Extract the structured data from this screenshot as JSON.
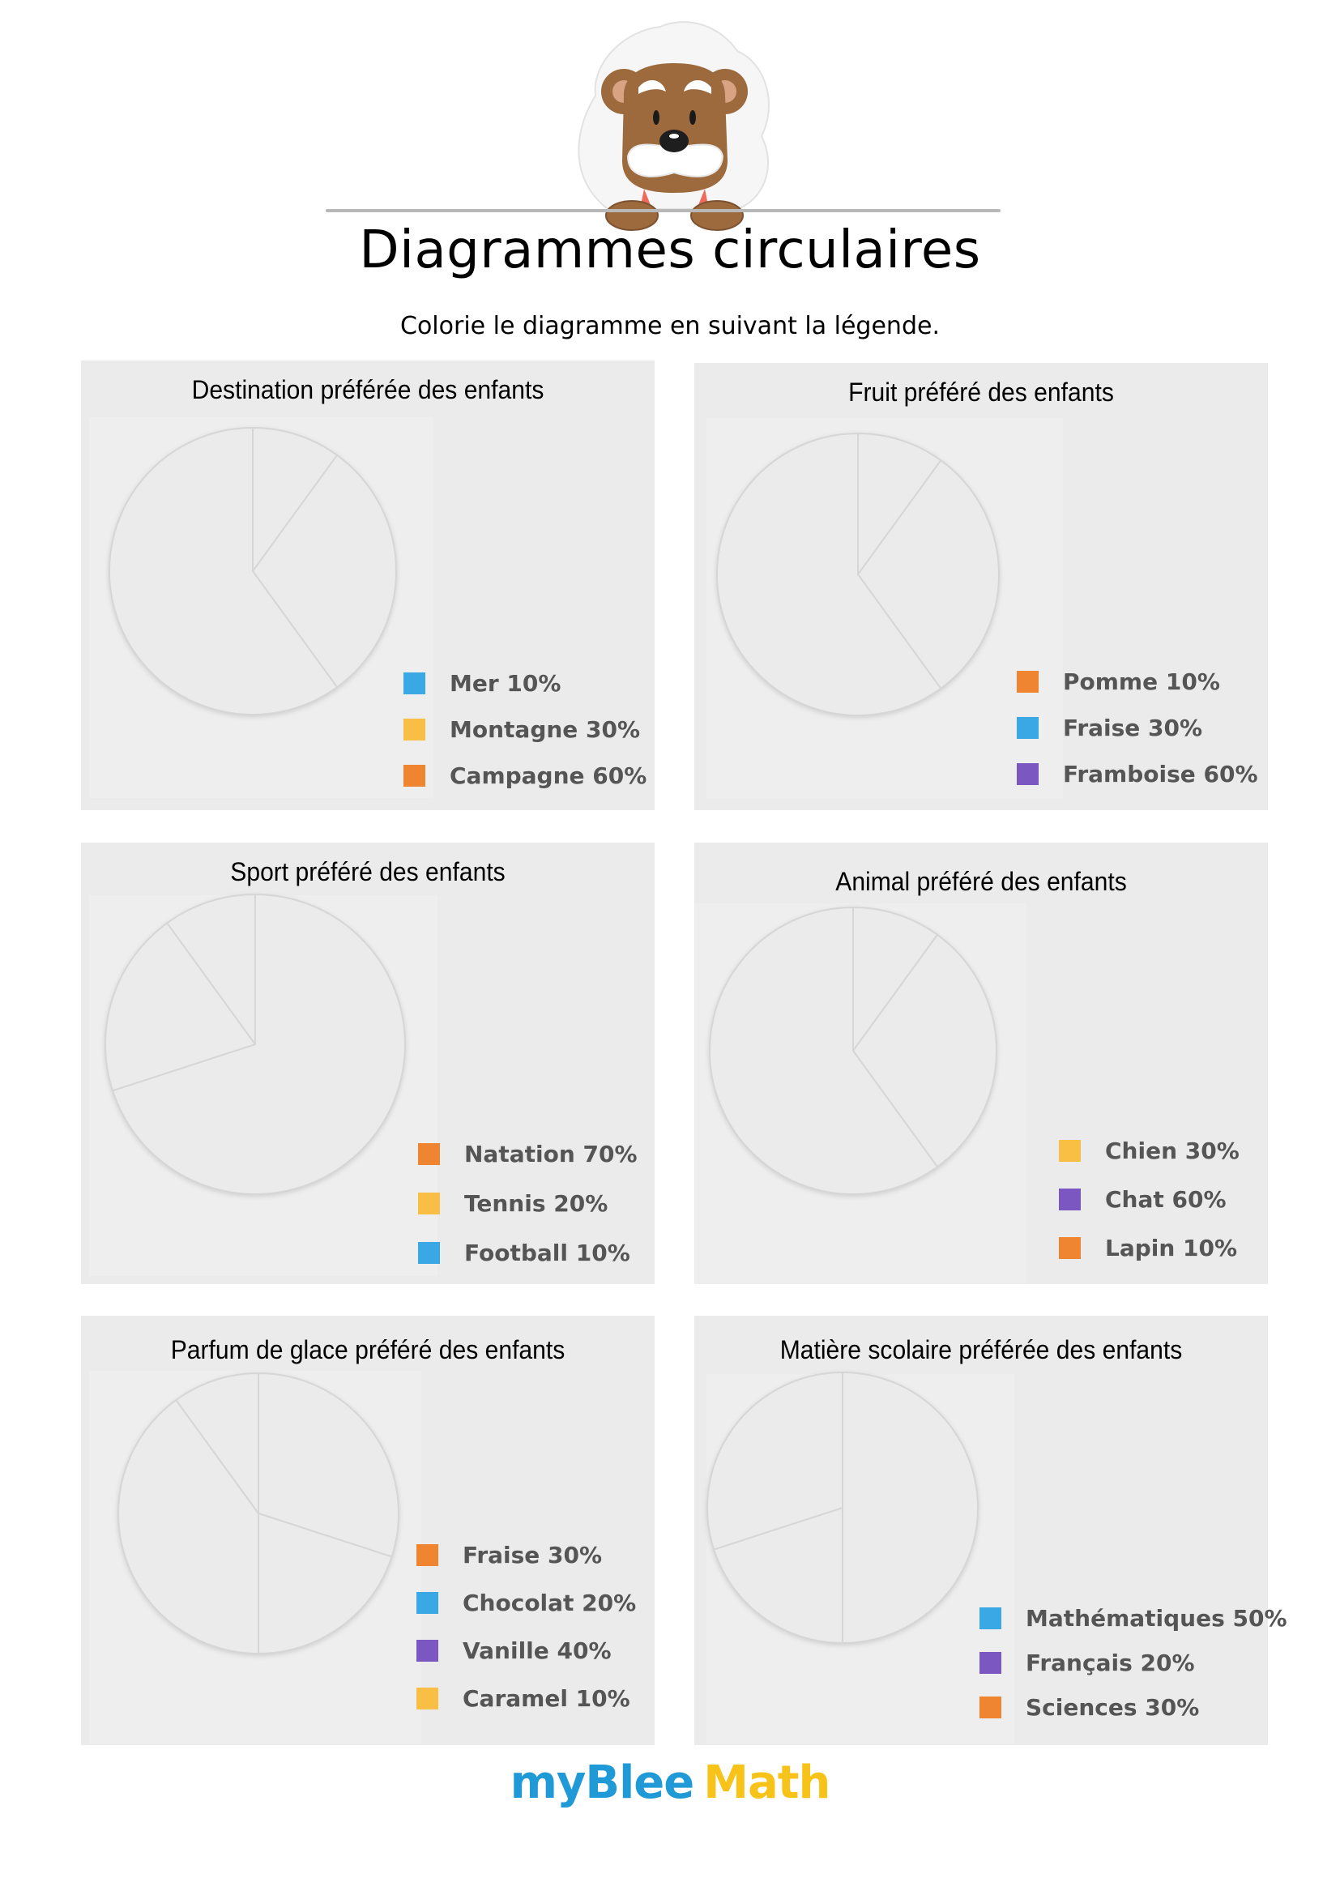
{
  "header": {
    "title": "Diagrammes circulaires",
    "subtitle": "Colorie le diagramme en suivant la légende."
  },
  "footer": {
    "logo_part1": "myBlee",
    "logo_part2": "Math",
    "colors": {
      "part1": "#1f9ad6",
      "part2": "#f7c318"
    }
  },
  "colors": {
    "blue": "#3aa8e4",
    "yellow": "#f9bf45",
    "orange": "#ef8431",
    "purple": "#7b57c1"
  },
  "chart_data": [
    {
      "type": "pie",
      "title": "Destination préférée des enfants",
      "categories": [
        "Mer",
        "Montagne",
        "Campagne"
      ],
      "values": [
        10,
        30,
        60
      ],
      "legend_labels": [
        "Mer 10%",
        "Montagne 30%",
        "Campagne 60%"
      ],
      "legend_colors": [
        "#3aa8e4",
        "#f9bf45",
        "#ef8431"
      ],
      "slices_filled": false,
      "legend": "bottom-right"
    },
    {
      "type": "pie",
      "title": "Fruit préféré des enfants",
      "categories": [
        "Pomme",
        "Fraise",
        "Framboise"
      ],
      "values": [
        10,
        30,
        60
      ],
      "legend_labels": [
        "Pomme 10%",
        "Fraise 30%",
        "Framboise 60%"
      ],
      "legend_colors": [
        "#ef8431",
        "#3aa8e4",
        "#7b57c1"
      ],
      "slices_filled": false,
      "legend": "bottom-right"
    },
    {
      "type": "pie",
      "title": "Sport préféré des enfants",
      "categories": [
        "Natation",
        "Tennis",
        "Football"
      ],
      "values": [
        70,
        20,
        10
      ],
      "legend_labels": [
        "Natation 70%",
        "Tennis 20%",
        "Football 10%"
      ],
      "legend_colors": [
        "#ef8431",
        "#f9bf45",
        "#3aa8e4"
      ],
      "slices_filled": false,
      "legend": "bottom-right"
    },
    {
      "type": "pie",
      "title": "Animal préféré des enfants",
      "categories": [
        "Lapin",
        "Chien",
        "Chat"
      ],
      "values": [
        10,
        30,
        60
      ],
      "legend_labels": [
        "Chien 30%",
        "Chat 60%",
        "Lapin 10%"
      ],
      "legend_colors": [
        "#f9bf45",
        "#7b57c1",
        "#ef8431"
      ],
      "slices_filled": false,
      "legend": "bottom-right"
    },
    {
      "type": "pie",
      "title": "Parfum de glace préféré des enfants",
      "categories": [
        "Fraise",
        "Chocolat",
        "Vanille",
        "Caramel"
      ],
      "values": [
        30,
        20,
        40,
        10
      ],
      "legend_labels": [
        "Fraise 30%",
        "Chocolat 20%",
        "Vanille 40%",
        "Caramel 10%"
      ],
      "legend_colors": [
        "#ef8431",
        "#3aa8e4",
        "#7b57c1",
        "#f9bf45"
      ],
      "slices_filled": false,
      "legend": "bottom-right"
    },
    {
      "type": "pie",
      "title": "Matière scolaire préférée des enfants",
      "categories": [
        "Mathématiques",
        "Français",
        "Sciences"
      ],
      "values": [
        50,
        20,
        30
      ],
      "legend_labels": [
        "Mathématiques 50%",
        "Français 20%",
        "Sciences 30%"
      ],
      "legend_colors": [
        "#3aa8e4",
        "#7b57c1",
        "#ef8431"
      ],
      "slices_filled": false,
      "legend": "bottom-right"
    }
  ]
}
